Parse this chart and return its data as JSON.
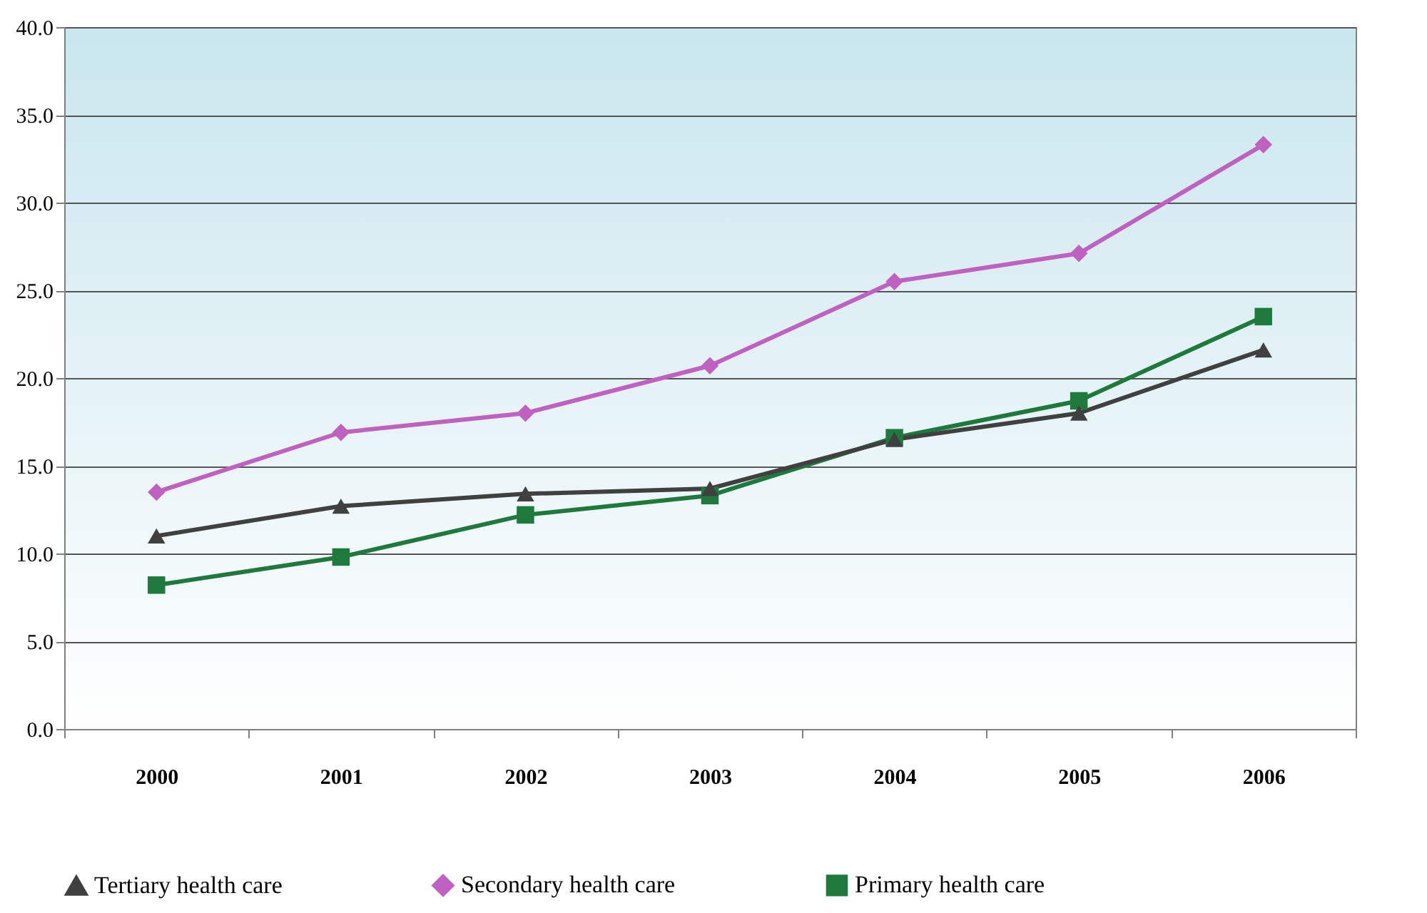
{
  "chart_data": {
    "type": "line",
    "categories": [
      "2000",
      "2001",
      "2002",
      "2003",
      "2004",
      "2005",
      "2006"
    ],
    "series": [
      {
        "name": "Tertiary health care",
        "color": "#404040",
        "marker": "triangle",
        "values": [
          11.0,
          12.7,
          13.4,
          13.7,
          16.5,
          18.0,
          21.6
        ]
      },
      {
        "name": "Secondary health care",
        "color": "#c060c0",
        "marker": "diamond",
        "values": [
          13.5,
          16.9,
          18.0,
          20.7,
          25.5,
          27.1,
          33.3
        ]
      },
      {
        "name": "Primary health care",
        "color": "#1e7a3c",
        "marker": "square",
        "values": [
          8.2,
          9.8,
          12.2,
          13.3,
          16.6,
          18.7,
          23.5
        ]
      }
    ],
    "ylim": [
      0,
      40
    ],
    "yticks": [
      {
        "value": 0,
        "label": "0.0"
      },
      {
        "value": 5,
        "label": "5.0"
      },
      {
        "value": 10,
        "label": "10.0"
      },
      {
        "value": 15,
        "label": "15.0"
      },
      {
        "value": 20,
        "label": "20.0"
      },
      {
        "value": 25,
        "label": "25.0"
      },
      {
        "value": 30,
        "label": "30.0"
      },
      {
        "value": 35,
        "label": "35.0"
      },
      {
        "value": 40,
        "label": "40.0"
      }
    ],
    "grid": "y",
    "legend": "bottom",
    "line_style": "solid"
  }
}
